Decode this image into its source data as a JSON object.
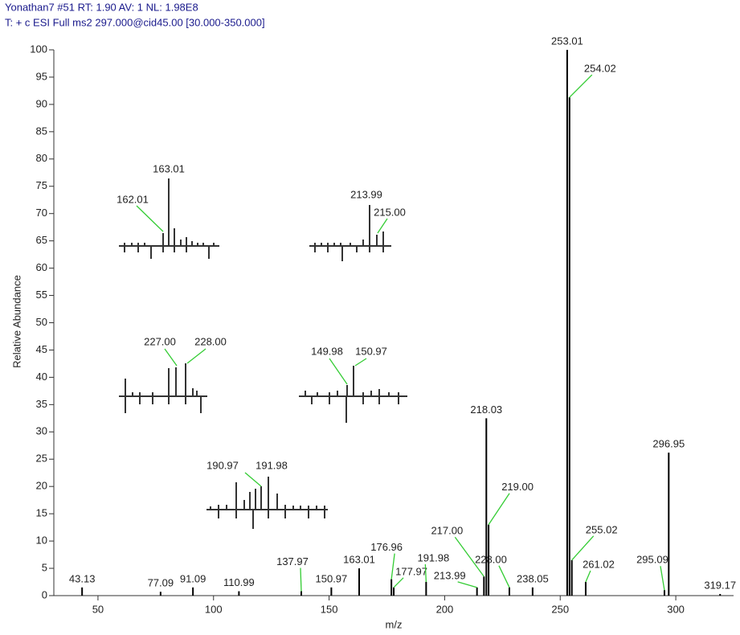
{
  "chart_data": {
    "type": "stem",
    "header": [
      "Yonathan7 #51  RT: 1.90  AV: 1  NL: 1.98E8",
      "T: + c ESI Full ms2 297.000@cid45.00 [30.000-350.000]"
    ],
    "ylabel": "Relative Abundance",
    "xlabel": "m/z",
    "x": [
      43.13,
      77.09,
      91.09,
      110.99,
      137.97,
      150.97,
      163.01,
      176.96,
      177.97,
      191.98,
      213.99,
      217.0,
      218.03,
      219.0,
      228.0,
      238.05,
      253.01,
      254.02,
      255.02,
      261.02,
      295.09,
      296.95,
      319.17
    ],
    "x_labels": [
      "43.13",
      "77.09",
      "91.09",
      "110.99",
      "137.97",
      "150.97",
      "163.01",
      "176.96",
      "177.97",
      "191.98",
      "213.99",
      "217.00",
      "218.03",
      "219.00",
      "228.00",
      "238.05",
      "253.01",
      "254.02",
      "255.02",
      "261.02",
      "295.09",
      "296.95",
      "319.17"
    ],
    "values": [
      1.5,
      0.7,
      1.5,
      0.8,
      0.8,
      1.5,
      5,
      3,
      1.5,
      2.5,
      1.5,
      3.5,
      32.5,
      13,
      1.5,
      1.5,
      100,
      91.3,
      6.5,
      2.5,
      1,
      26.2,
      0.3
    ],
    "color": "#000000",
    "xlim": [
      30,
      325
    ],
    "xticks": [
      50,
      100,
      150,
      200,
      250,
      300
    ],
    "ylim": [
      0,
      100
    ],
    "yticks": [
      0,
      5,
      10,
      15,
      20,
      25,
      30,
      35,
      40,
      45,
      50,
      55,
      60,
      65,
      70,
      75,
      80,
      85,
      90,
      95,
      100
    ],
    "insets": [
      {
        "labels": [
          "162.01",
          "163.01"
        ]
      },
      {
        "labels": [
          "213.99",
          "215.00"
        ]
      },
      {
        "labels": [
          "227.00",
          "228.00"
        ]
      },
      {
        "labels": [
          "149.98",
          "150.97"
        ]
      },
      {
        "labels": [
          "190.97",
          "191.98"
        ]
      }
    ]
  }
}
